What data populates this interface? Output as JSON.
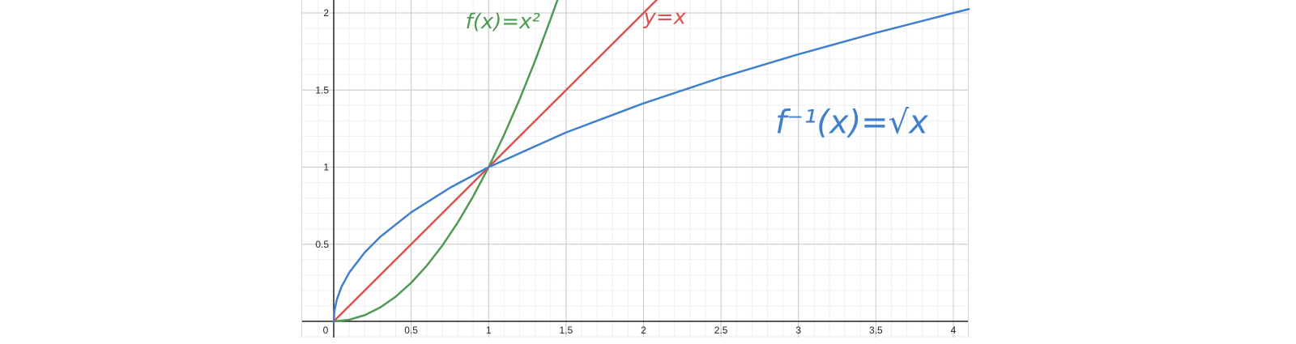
{
  "chart_data": {
    "type": "line",
    "xlim": [
      -0.15,
      4.1
    ],
    "ylim": [
      -0.1,
      2.08
    ],
    "grid": true,
    "x_ticks": [
      {
        "value": 0,
        "label": "0"
      },
      {
        "value": 0.5,
        "label": "0.5"
      },
      {
        "value": 1,
        "label": "1"
      },
      {
        "value": 1.5,
        "label": "1.5"
      },
      {
        "value": 2,
        "label": "2"
      },
      {
        "value": 2.5,
        "label": "2.5"
      },
      {
        "value": 3,
        "label": "3"
      },
      {
        "value": 3.5,
        "label": "3.5"
      },
      {
        "value": 4,
        "label": "4"
      }
    ],
    "y_ticks": [
      {
        "value": 0.5,
        "label": "0.5"
      },
      {
        "value": 1,
        "label": "1"
      },
      {
        "value": 1.5,
        "label": "1.5"
      },
      {
        "value": 2,
        "label": "2"
      }
    ],
    "series": [
      {
        "id": "x-squared",
        "name": "f(x)=x²",
        "expr": "x^2",
        "color": "#4f9a52",
        "x": [
          0,
          0.1,
          0.2,
          0.3,
          0.4,
          0.5,
          0.6,
          0.7,
          0.8,
          0.9,
          1.0,
          1.1,
          1.2,
          1.3,
          1.4,
          1.45
        ],
        "y": [
          0,
          0.01,
          0.04,
          0.09,
          0.16,
          0.25,
          0.36,
          0.49,
          0.64,
          0.81,
          1.0,
          1.21,
          1.44,
          1.69,
          1.96,
          2.1
        ]
      },
      {
        "id": "identity",
        "name": "y=x",
        "expr": "x",
        "color": "#d9534f",
        "x": [
          0,
          2.1
        ],
        "y": [
          0,
          2.1
        ]
      },
      {
        "id": "sqrt-x",
        "name": "f⁻¹(x)=√x",
        "expr": "sqrt(x)",
        "color": "#3f7fcc",
        "x": [
          0,
          0.005,
          0.02,
          0.05,
          0.1,
          0.2,
          0.3,
          0.5,
          0.75,
          1.0,
          1.5,
          2.0,
          2.5,
          3.0,
          3.5,
          4.0,
          4.1
        ],
        "y": [
          0,
          0.071,
          0.141,
          0.224,
          0.316,
          0.447,
          0.548,
          0.707,
          0.866,
          1.0,
          1.225,
          1.414,
          1.581,
          1.732,
          1.871,
          2.0,
          2.025
        ]
      }
    ],
    "annotations": [
      {
        "id": "label-x-squared",
        "text": "f(x)=x²",
        "color": "#4f9a52",
        "anchor_x": 0.85,
        "anchor_y": 1.9
      },
      {
        "id": "label-identity",
        "text": "y=x",
        "color": "#d9534f",
        "anchor_x": 2.0,
        "anchor_y": 1.93
      },
      {
        "id": "label-sqrt-x",
        "text": "f⁻¹(x)=√x",
        "color": "#3f7fcc",
        "anchor_x": 2.85,
        "anchor_y": 1.22
      }
    ]
  }
}
